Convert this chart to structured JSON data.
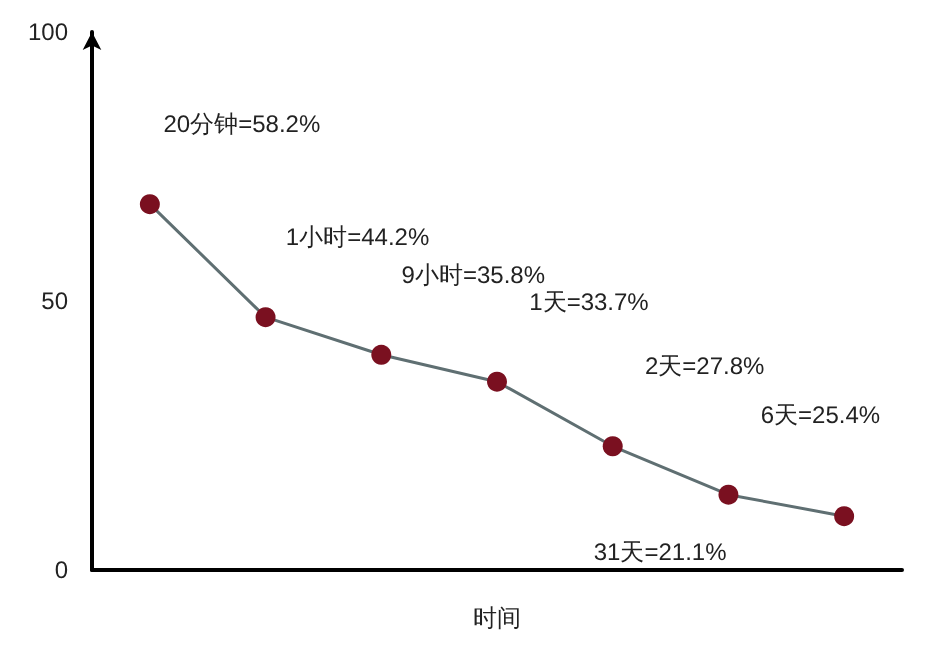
{
  "chart_data": {
    "type": "line",
    "xlabel": "时间",
    "categories": [
      null,
      null,
      null,
      null,
      null,
      null,
      null
    ],
    "values": [
      68,
      47,
      40,
      35,
      23,
      14,
      10
    ],
    "color": "#5f6f72",
    "colors": [
      "#7a1020",
      "#7a1020",
      "#7a1020",
      "#7a1020",
      "#7a1020",
      "#7a1020",
      "#7a1020"
    ],
    "ylim": [
      0,
      100
    ],
    "yticks": [
      0,
      50,
      100
    ],
    "tick_labels": "y",
    "marker": "circle",
    "grid": false,
    "annotations": [
      "20分钟=58.2%",
      "1小时=44.2%",
      "9小时=35.8%",
      "1天=33.7%",
      "2天=27.8%",
      "6天=25.4%",
      "31天=21.1%"
    ]
  }
}
